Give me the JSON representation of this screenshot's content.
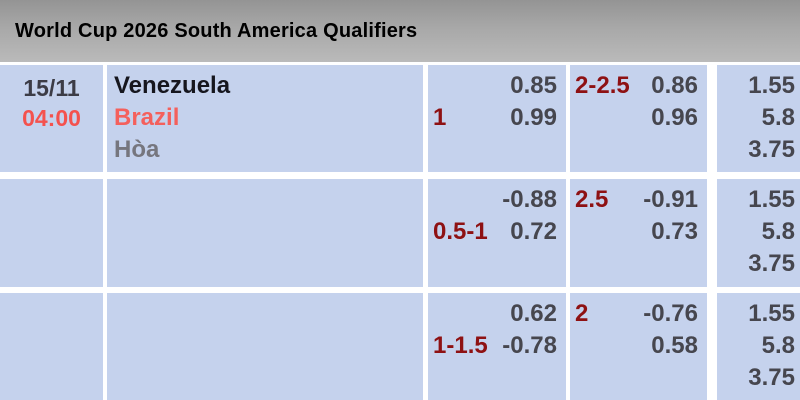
{
  "header": {
    "title": "World Cup 2026 South America Qualifiers"
  },
  "colors": {
    "header_gray": "#a8a8a8",
    "cell_blue": "#c5d2ed",
    "gap_white": "#ffffff",
    "date_dark": "#3c3c46",
    "time_red": "#f4524e",
    "home_dark": "#16161e",
    "away_red": "#f4605c",
    "draw_gray": "#76767e",
    "handicap_maroon": "#8e1113",
    "odds_dark": "#46464e"
  },
  "match": {
    "date": "15/11",
    "time": "04:00",
    "home_team": "Venezuela",
    "away_team": "Brazil",
    "draw_label": "Hòa"
  },
  "markets": [
    {
      "asian_handicap": {
        "hdp1": "",
        "odds1": "0.85",
        "hdp2": "1",
        "odds2": "0.99"
      },
      "over_under": {
        "hdp1": "2-2.5",
        "odds1": "0.86",
        "hdp2": "",
        "odds2": "0.96"
      },
      "one_x_two": [
        "1.55",
        "5.8",
        "3.75"
      ]
    },
    {
      "asian_handicap": {
        "hdp1": "",
        "odds1": "-0.88",
        "hdp2": "0.5-1",
        "odds2": "0.72"
      },
      "over_under": {
        "hdp1": "2.5",
        "odds1": "-0.91",
        "hdp2": "",
        "odds2": "0.73"
      },
      "one_x_two": [
        "1.55",
        "5.8",
        "3.75"
      ]
    },
    {
      "asian_handicap": {
        "hdp1": "",
        "odds1": "0.62",
        "hdp2": "1-1.5",
        "odds2": "-0.78"
      },
      "over_under": {
        "hdp1": "2",
        "odds1": "-0.76",
        "hdp2": "",
        "odds2": "0.58"
      },
      "one_x_two": [
        "1.55",
        "5.8",
        "3.75"
      ]
    }
  ]
}
